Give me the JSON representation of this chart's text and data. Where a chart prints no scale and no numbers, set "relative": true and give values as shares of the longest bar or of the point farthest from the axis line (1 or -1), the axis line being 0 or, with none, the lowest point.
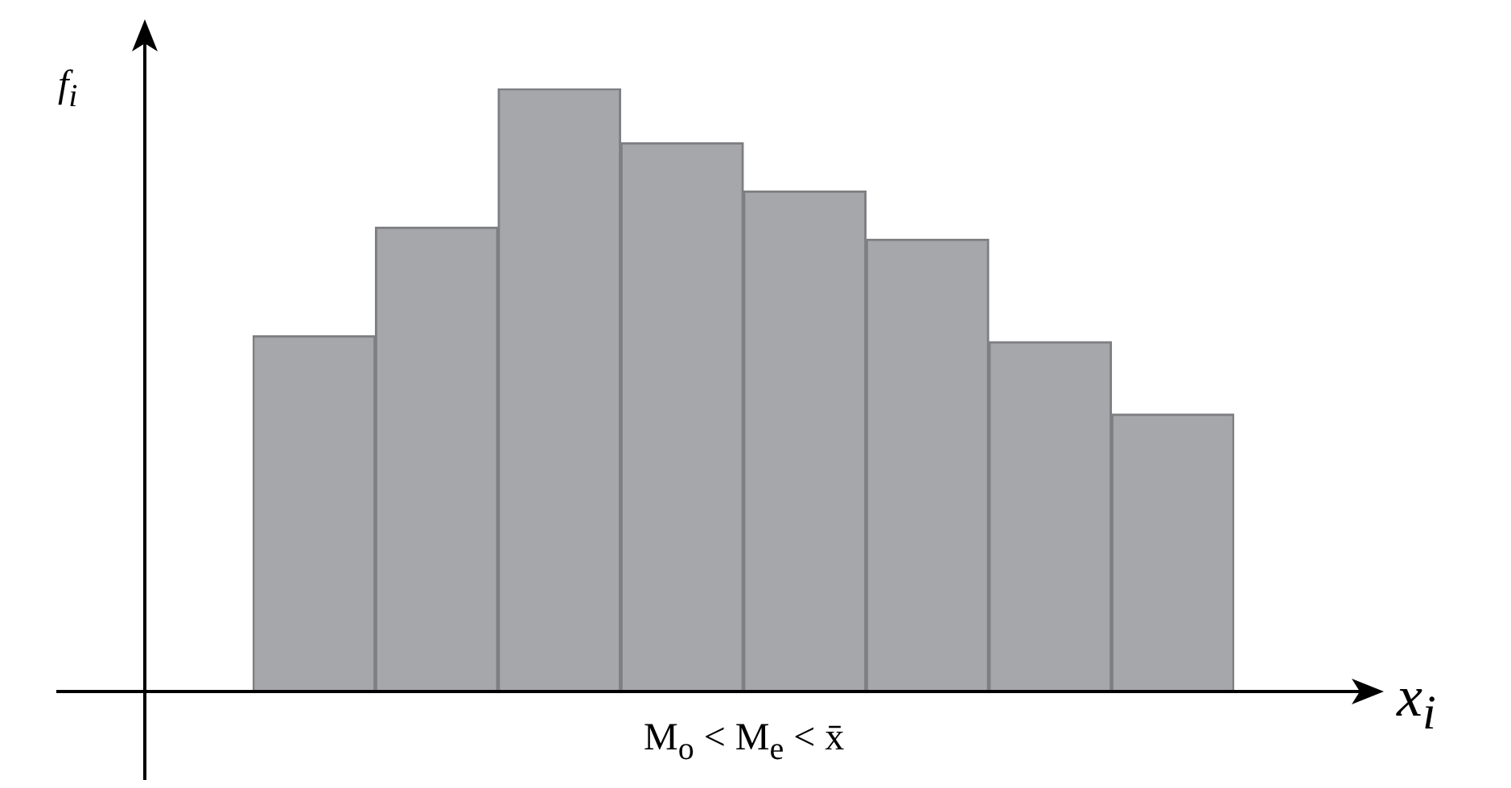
{
  "chart_data": {
    "type": "bar",
    "relative": true,
    "xlabel": "x$_{i}$",
    "ylabel": "f$_{i}$",
    "annotations": [
      "M$_{o}$ < M$_{e}$ < x̄"
    ],
    "categories": [
      null,
      null,
      null,
      null,
      null,
      null,
      null,
      null
    ],
    "values": [
      0.59,
      0.77,
      1,
      0.91,
      0.83,
      0.75,
      0.58,
      0.46
    ],
    "color": "#a6a7ab",
    "grid": false,
    "legend": false
  }
}
